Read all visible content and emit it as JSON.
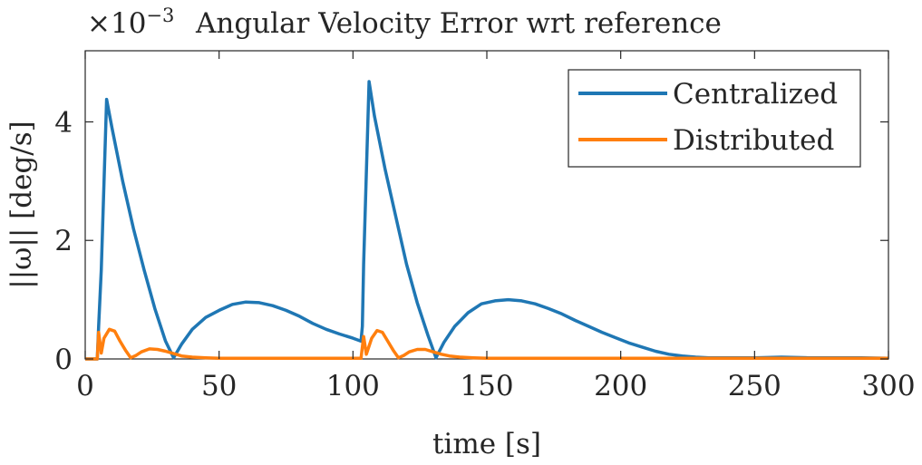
{
  "chart_data": {
    "type": "line",
    "title": "Angular Velocity Error wrt reference",
    "exponent_label": "×10",
    "exponent_power": "−3",
    "xlabel": "time [s]",
    "ylabel": "||ω|| [deg/s]",
    "xlim": [
      0,
      300
    ],
    "ylim": [
      0,
      5.2
    ],
    "y_scale_factor": 0.001,
    "xticks": [
      0,
      50,
      100,
      150,
      200,
      250,
      300
    ],
    "xtick_labels": [
      "0",
      "50",
      "100",
      "150",
      "200",
      "250",
      "300"
    ],
    "yticks": [
      0,
      2,
      4
    ],
    "ytick_labels": [
      "0",
      "2",
      "4"
    ],
    "grid": false,
    "legend_position": "top-right",
    "series": [
      {
        "name": "Centralized",
        "color": "#1f77b4",
        "x": [
          0,
          4.5,
          5,
          6,
          8,
          10,
          14,
          18,
          22,
          26,
          30,
          33,
          36,
          40,
          45,
          50,
          55,
          60,
          65,
          70,
          75,
          80,
          85,
          90,
          95,
          100,
          103,
          103.5,
          104,
          106,
          108,
          112,
          116,
          120,
          124,
          128,
          131,
          134,
          138,
          143,
          148,
          153,
          158,
          163,
          168,
          173,
          178,
          183,
          188,
          193,
          198,
          203,
          208,
          213,
          218,
          223,
          228,
          233,
          240,
          250,
          260,
          270,
          280,
          290,
          300
        ],
        "values": [
          0.0,
          0.0,
          0.55,
          1.5,
          4.38,
          3.9,
          3.0,
          2.2,
          1.5,
          0.85,
          0.3,
          0.02,
          0.25,
          0.5,
          0.7,
          0.82,
          0.92,
          0.96,
          0.95,
          0.9,
          0.82,
          0.72,
          0.6,
          0.5,
          0.42,
          0.35,
          0.3,
          0.55,
          1.6,
          4.68,
          4.1,
          3.2,
          2.4,
          1.6,
          0.95,
          0.4,
          0.02,
          0.28,
          0.55,
          0.78,
          0.93,
          0.98,
          1.0,
          0.98,
          0.93,
          0.85,
          0.76,
          0.65,
          0.55,
          0.45,
          0.36,
          0.27,
          0.2,
          0.13,
          0.08,
          0.05,
          0.03,
          0.02,
          0.02,
          0.02,
          0.03,
          0.02,
          0.02,
          0.02,
          0.01
        ]
      },
      {
        "name": "Distributed",
        "color": "#ff7f0e",
        "x": [
          0,
          4.5,
          5,
          6,
          7,
          9,
          11,
          13,
          15,
          17,
          19,
          21,
          24,
          27,
          30,
          33,
          36,
          40,
          45,
          50,
          60,
          70,
          80,
          90,
          100,
          103,
          104,
          105,
          107,
          109,
          111,
          113,
          115,
          117,
          119,
          121,
          124,
          127,
          130,
          133,
          136,
          140,
          145,
          150,
          160,
          180,
          200,
          220,
          240,
          260,
          280,
          300
        ],
        "values": [
          0.0,
          0.0,
          0.45,
          0.1,
          0.35,
          0.5,
          0.47,
          0.3,
          0.15,
          0.02,
          0.06,
          0.12,
          0.17,
          0.16,
          0.13,
          0.09,
          0.05,
          0.03,
          0.02,
          0.01,
          0.01,
          0.01,
          0.01,
          0.01,
          0.01,
          0.01,
          0.38,
          0.08,
          0.35,
          0.48,
          0.45,
          0.3,
          0.15,
          0.02,
          0.06,
          0.12,
          0.16,
          0.16,
          0.12,
          0.08,
          0.05,
          0.03,
          0.02,
          0.01,
          0.01,
          0.01,
          0.01,
          0.01,
          0.01,
          0.01,
          0.01,
          0.01
        ]
      }
    ]
  }
}
